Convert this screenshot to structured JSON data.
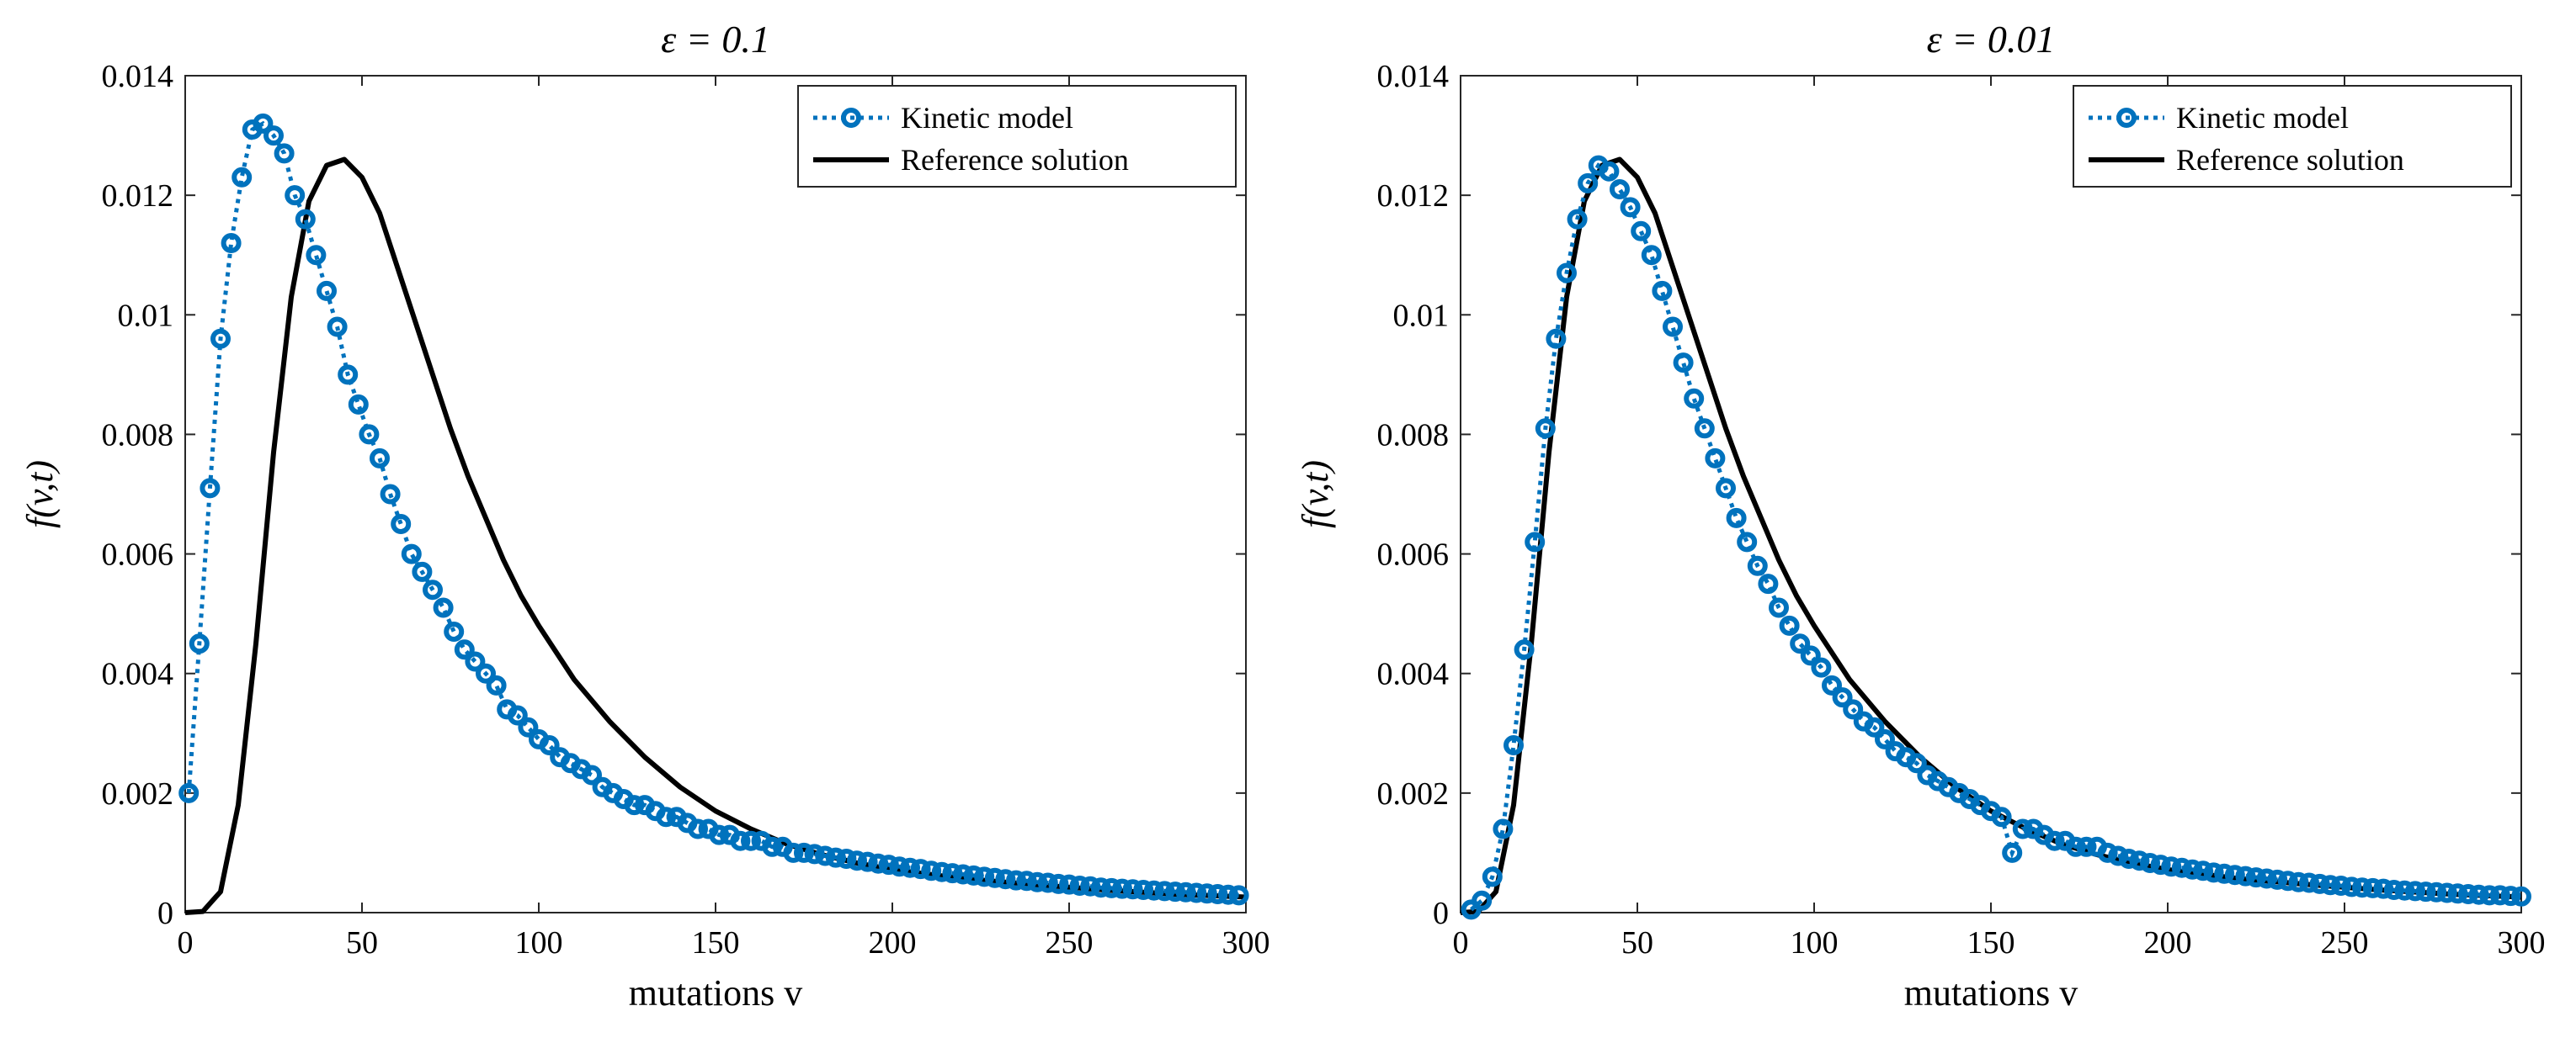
{
  "colors": {
    "kinetic": "#0072BD",
    "reference": "#000000",
    "axis": "#262626"
  },
  "chart_data": [
    {
      "type": "line",
      "title": "ε = 0.1",
      "xlabel": "mutations v",
      "ylabel": "f(v,t)",
      "xlim": [
        0,
        300
      ],
      "ylim": [
        0,
        0.014
      ],
      "xticks": [
        0,
        50,
        100,
        150,
        200,
        250,
        300
      ],
      "yticks": [
        0,
        0.002,
        0.004,
        0.006,
        0.008,
        0.01,
        0.012,
        0.014
      ],
      "xtick_labels": [
        "0",
        "50",
        "100",
        "150",
        "200",
        "250",
        "300"
      ],
      "ytick_labels": [
        "0",
        "0.002",
        "0.004",
        "0.006",
        "0.008",
        "0.01",
        "0.012",
        "0.014"
      ],
      "legend": [
        "Kinetic model",
        "Reference solution"
      ],
      "legend_position": "top-right",
      "series": [
        {
          "name": "Kinetic model",
          "style": "dotted-circles",
          "x": [
            1,
            4,
            7,
            10,
            13,
            16,
            19,
            22,
            25,
            28,
            31,
            34,
            37,
            40,
            43,
            46,
            49,
            52,
            55,
            58,
            61,
            64,
            67,
            70,
            73,
            76,
            79,
            82,
            85,
            88,
            91,
            94,
            97,
            100,
            103,
            106,
            109,
            112,
            115,
            118,
            121,
            124,
            127,
            130,
            133,
            136,
            139,
            142,
            145,
            148,
            151,
            154,
            157,
            160,
            163,
            166,
            169,
            172,
            175,
            178,
            181,
            184,
            187,
            190,
            193,
            196,
            199,
            202,
            205,
            208,
            211,
            214,
            217,
            220,
            223,
            226,
            229,
            232,
            235,
            238,
            241,
            244,
            247,
            250,
            253,
            256,
            259,
            262,
            265,
            268,
            271,
            274,
            277,
            280,
            283,
            286,
            289,
            292,
            295,
            298
          ],
          "y": [
            0.002,
            0.0045,
            0.0071,
            0.0096,
            0.0112,
            0.0123,
            0.0131,
            0.0132,
            0.013,
            0.0127,
            0.012,
            0.0116,
            0.011,
            0.0104,
            0.0098,
            0.009,
            0.0085,
            0.008,
            0.0076,
            0.007,
            0.0065,
            0.006,
            0.0057,
            0.0054,
            0.0051,
            0.0047,
            0.0044,
            0.0042,
            0.004,
            0.0038,
            0.0034,
            0.0033,
            0.0031,
            0.0029,
            0.0028,
            0.0026,
            0.0025,
            0.0024,
            0.0023,
            0.0021,
            0.002,
            0.0019,
            0.0018,
            0.0018,
            0.0017,
            0.0016,
            0.0016,
            0.0015,
            0.0014,
            0.0014,
            0.0013,
            0.0013,
            0.0012,
            0.0012,
            0.0012,
            0.0011,
            0.0011,
            0.001,
            0.001,
            0.00098,
            0.00095,
            0.00092,
            0.0009,
            0.00087,
            0.00085,
            0.00082,
            0.0008,
            0.00077,
            0.00075,
            0.00073,
            0.0007,
            0.00068,
            0.00066,
            0.00064,
            0.00062,
            0.0006,
            0.00058,
            0.00056,
            0.00054,
            0.00053,
            0.00051,
            0.0005,
            0.00048,
            0.00047,
            0.00045,
            0.00044,
            0.00042,
            0.00041,
            0.0004,
            0.00039,
            0.00038,
            0.00037,
            0.00036,
            0.00035,
            0.00034,
            0.00033,
            0.00032,
            0.00031,
            0.0003,
            0.00029
          ]
        },
        {
          "name": "Reference solution",
          "style": "solid",
          "x": [
            0,
            5,
            10,
            15,
            20,
            25,
            30,
            35,
            40,
            45,
            50,
            55,
            60,
            65,
            70,
            75,
            80,
            85,
            90,
            95,
            100,
            110,
            120,
            130,
            140,
            150,
            160,
            170,
            180,
            190,
            200,
            220,
            240,
            260,
            280,
            300
          ],
          "y": [
            0,
            2e-05,
            0.00035,
            0.0018,
            0.0045,
            0.0077,
            0.0103,
            0.0119,
            0.0125,
            0.0126,
            0.0123,
            0.0117,
            0.0108,
            0.0099,
            0.009,
            0.0081,
            0.0073,
            0.0066,
            0.0059,
            0.0053,
            0.0048,
            0.0039,
            0.0032,
            0.0026,
            0.0021,
            0.0017,
            0.0014,
            0.00115,
            0.00097,
            0.00083,
            0.00072,
            0.00057,
            0.00047,
            0.00038,
            0.00031,
            0.00026
          ]
        }
      ]
    },
    {
      "type": "line",
      "title": "ε = 0.01",
      "xlabel": "mutations v",
      "ylabel": "f(v,t)",
      "xlim": [
        0,
        300
      ],
      "ylim": [
        0,
        0.014
      ],
      "xticks": [
        0,
        50,
        100,
        150,
        200,
        250,
        300
      ],
      "yticks": [
        0,
        0.002,
        0.004,
        0.006,
        0.008,
        0.01,
        0.012,
        0.014
      ],
      "xtick_labels": [
        "0",
        "50",
        "100",
        "150",
        "200",
        "250",
        "300"
      ],
      "ytick_labels": [
        "0",
        "0.002",
        "0.004",
        "0.006",
        "0.008",
        "0.01",
        "0.012",
        "0.014"
      ],
      "legend": [
        "Kinetic model",
        "Reference solution"
      ],
      "legend_position": "top-right",
      "series": [
        {
          "name": "Kinetic model",
          "style": "dotted-circles",
          "x": [
            3,
            6,
            9,
            12,
            15,
            18,
            21,
            24,
            27,
            30,
            33,
            36,
            39,
            42,
            45,
            48,
            51,
            54,
            57,
            60,
            63,
            66,
            69,
            72,
            75,
            78,
            81,
            84,
            87,
            90,
            93,
            96,
            99,
            102,
            105,
            108,
            111,
            114,
            117,
            120,
            123,
            126,
            129,
            132,
            135,
            138,
            141,
            144,
            147,
            150,
            153,
            156,
            159,
            162,
            165,
            168,
            171,
            174,
            177,
            180,
            183,
            186,
            189,
            192,
            195,
            198,
            201,
            204,
            207,
            210,
            213,
            216,
            219,
            222,
            225,
            228,
            231,
            234,
            237,
            240,
            243,
            246,
            249,
            252,
            255,
            258,
            261,
            264,
            267,
            270,
            273,
            276,
            279,
            282,
            285,
            288,
            291,
            294,
            297,
            300
          ],
          "y": [
            5e-05,
            0.0002,
            0.0006,
            0.0014,
            0.0028,
            0.0044,
            0.0062,
            0.0081,
            0.0096,
            0.0107,
            0.0116,
            0.0122,
            0.0125,
            0.0124,
            0.0121,
            0.0118,
            0.0114,
            0.011,
            0.0104,
            0.0098,
            0.0092,
            0.0086,
            0.0081,
            0.0076,
            0.0071,
            0.0066,
            0.0062,
            0.0058,
            0.0055,
            0.0051,
            0.0048,
            0.0045,
            0.0043,
            0.0041,
            0.0038,
            0.0036,
            0.0034,
            0.0032,
            0.0031,
            0.0029,
            0.0027,
            0.0026,
            0.0025,
            0.0023,
            0.0022,
            0.0021,
            0.002,
            0.0019,
            0.0018,
            0.0017,
            0.0016,
            0.001,
            0.0014,
            0.0014,
            0.0013,
            0.0012,
            0.0012,
            0.0011,
            0.0011,
            0.0011,
            0.001,
            0.00095,
            0.0009,
            0.00087,
            0.00083,
            0.0008,
            0.00077,
            0.00075,
            0.00072,
            0.0007,
            0.00067,
            0.00065,
            0.00063,
            0.00061,
            0.00059,
            0.00057,
            0.00055,
            0.00053,
            0.00051,
            0.0005,
            0.00048,
            0.00046,
            0.00045,
            0.00043,
            0.00042,
            0.00041,
            0.0004,
            0.00038,
            0.00037,
            0.00036,
            0.00035,
            0.00034,
            0.00033,
            0.00032,
            0.00031,
            0.0003,
            0.00029,
            0.00029,
            0.00028,
            0.00027
          ]
        },
        {
          "name": "Reference solution",
          "style": "solid",
          "x": [
            0,
            5,
            10,
            15,
            20,
            25,
            30,
            35,
            40,
            45,
            50,
            55,
            60,
            65,
            70,
            75,
            80,
            85,
            90,
            95,
            100,
            110,
            120,
            130,
            140,
            150,
            160,
            170,
            180,
            190,
            200,
            220,
            240,
            260,
            280,
            300
          ],
          "y": [
            0,
            2e-05,
            0.00035,
            0.0018,
            0.0045,
            0.0077,
            0.0103,
            0.0119,
            0.0125,
            0.0126,
            0.0123,
            0.0117,
            0.0108,
            0.0099,
            0.009,
            0.0081,
            0.0073,
            0.0066,
            0.0059,
            0.0053,
            0.0048,
            0.0039,
            0.0032,
            0.0026,
            0.0021,
            0.0017,
            0.0014,
            0.00115,
            0.00097,
            0.00083,
            0.00072,
            0.00057,
            0.00047,
            0.00038,
            0.00031,
            0.00026
          ]
        }
      ]
    }
  ]
}
